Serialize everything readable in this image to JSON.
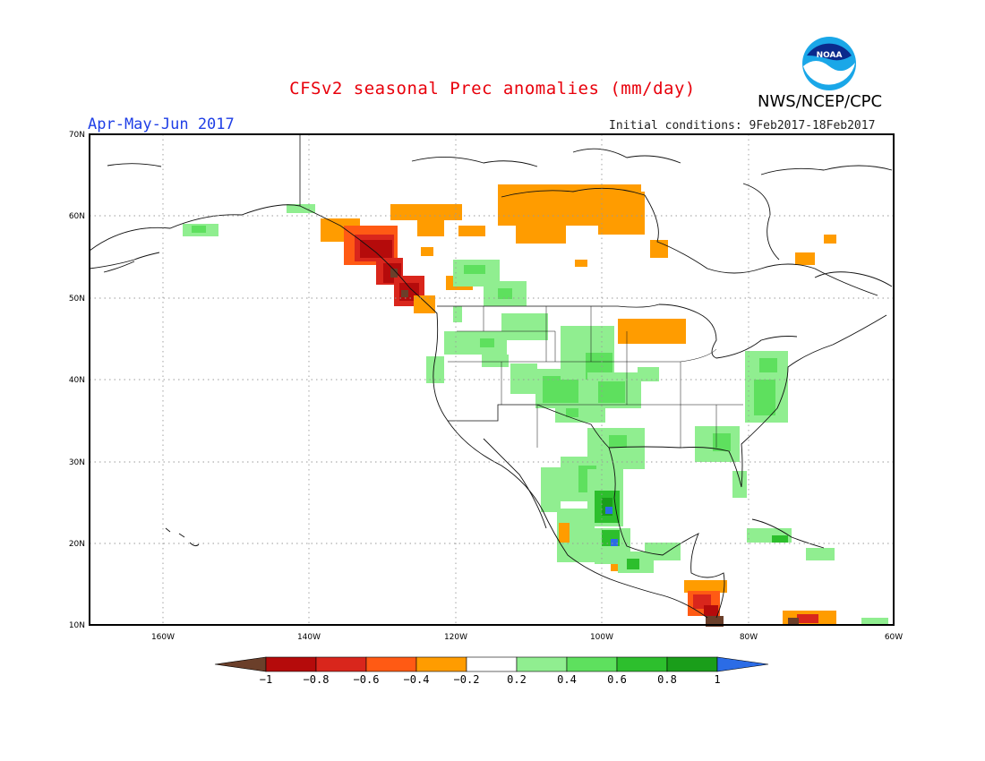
{
  "header": {
    "title": "CFSv2 seasonal Prec anomalies (mm/day)",
    "period": "Apr-May-Jun 2017",
    "initial_conditions": "Initial conditions: 9Feb2017-18Feb2017",
    "organization": "NWS/NCEP/CPC",
    "logo_text": "NOAA"
  },
  "axes": {
    "lat_labels": [
      "70N",
      "60N",
      "50N",
      "40N",
      "30N",
      "20N",
      "10N"
    ],
    "lon_labels": [
      "160W",
      "140W",
      "120W",
      "100W",
      "80W",
      "60W"
    ]
  },
  "colorbar": {
    "labels": [
      "-1",
      "-0.8",
      "-0.6",
      "-0.4",
      "-0.2",
      "0.2",
      "0.4",
      "0.6",
      "0.8",
      "1"
    ],
    "colors": [
      "#6b3f2a",
      "#b50b0b",
      "#d9261c",
      "#ff5a14",
      "#ff9c00",
      "#ffffff",
      "#90ee90",
      "#5ee05e",
      "#2dbf2d",
      "#1a9e1a",
      "#2b6ce6"
    ]
  },
  "colors": {
    "title": "#e8000b",
    "period": "#1f3fe6"
  }
}
